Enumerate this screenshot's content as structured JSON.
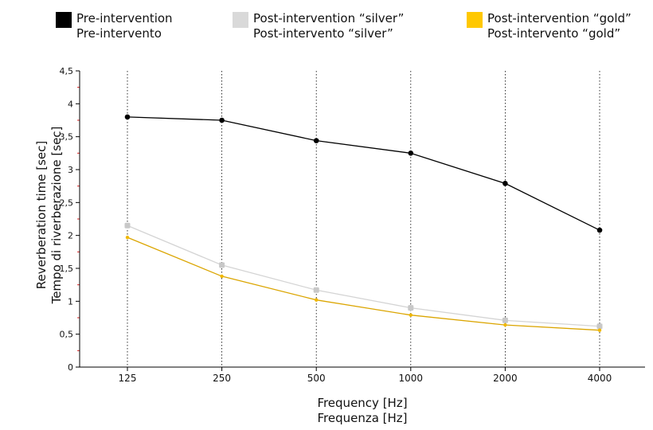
{
  "chart_data": {
    "type": "line",
    "categories": [
      "125",
      "250",
      "500",
      "1000",
      "2000",
      "4000"
    ],
    "series": [
      {
        "name": "Pre-intervention",
        "name_it": "Pre-intervento",
        "color": "#000000",
        "marker_color": "#000000",
        "values": [
          3.8,
          3.75,
          3.44,
          3.25,
          2.79,
          2.08
        ]
      },
      {
        "name": "Post-intervention “silver”",
        "name_it": "Post-intervento “silver”",
        "color": "#d4d4d4",
        "marker_color": "#c8c8c8",
        "values": [
          2.15,
          1.55,
          1.17,
          0.9,
          0.71,
          0.62
        ]
      },
      {
        "name": "Post-intervention “gold”",
        "name_it": "Post-intervento “gold”",
        "color": "#dba500",
        "marker_color": "#f0b800",
        "values": [
          1.97,
          1.38,
          1.02,
          0.79,
          0.64,
          0.56
        ]
      }
    ],
    "legend_swatches": [
      "#000000",
      "#d9d9d9",
      "#ffc800"
    ],
    "y_ticks": [
      "0",
      "0,5",
      "1",
      "1,5",
      "2",
      "2,5",
      "3",
      "3,5",
      "4",
      "4,5"
    ],
    "ylim": [
      0,
      4.5
    ],
    "xlabel": [
      "Frequency [Hz]",
      "Frequenza [Hz]"
    ],
    "ylabel": [
      "Reverberation time [sec]",
      "Tempo di riverberazione [sec]"
    ],
    "grid": "vertical",
    "legend_position": "top"
  }
}
